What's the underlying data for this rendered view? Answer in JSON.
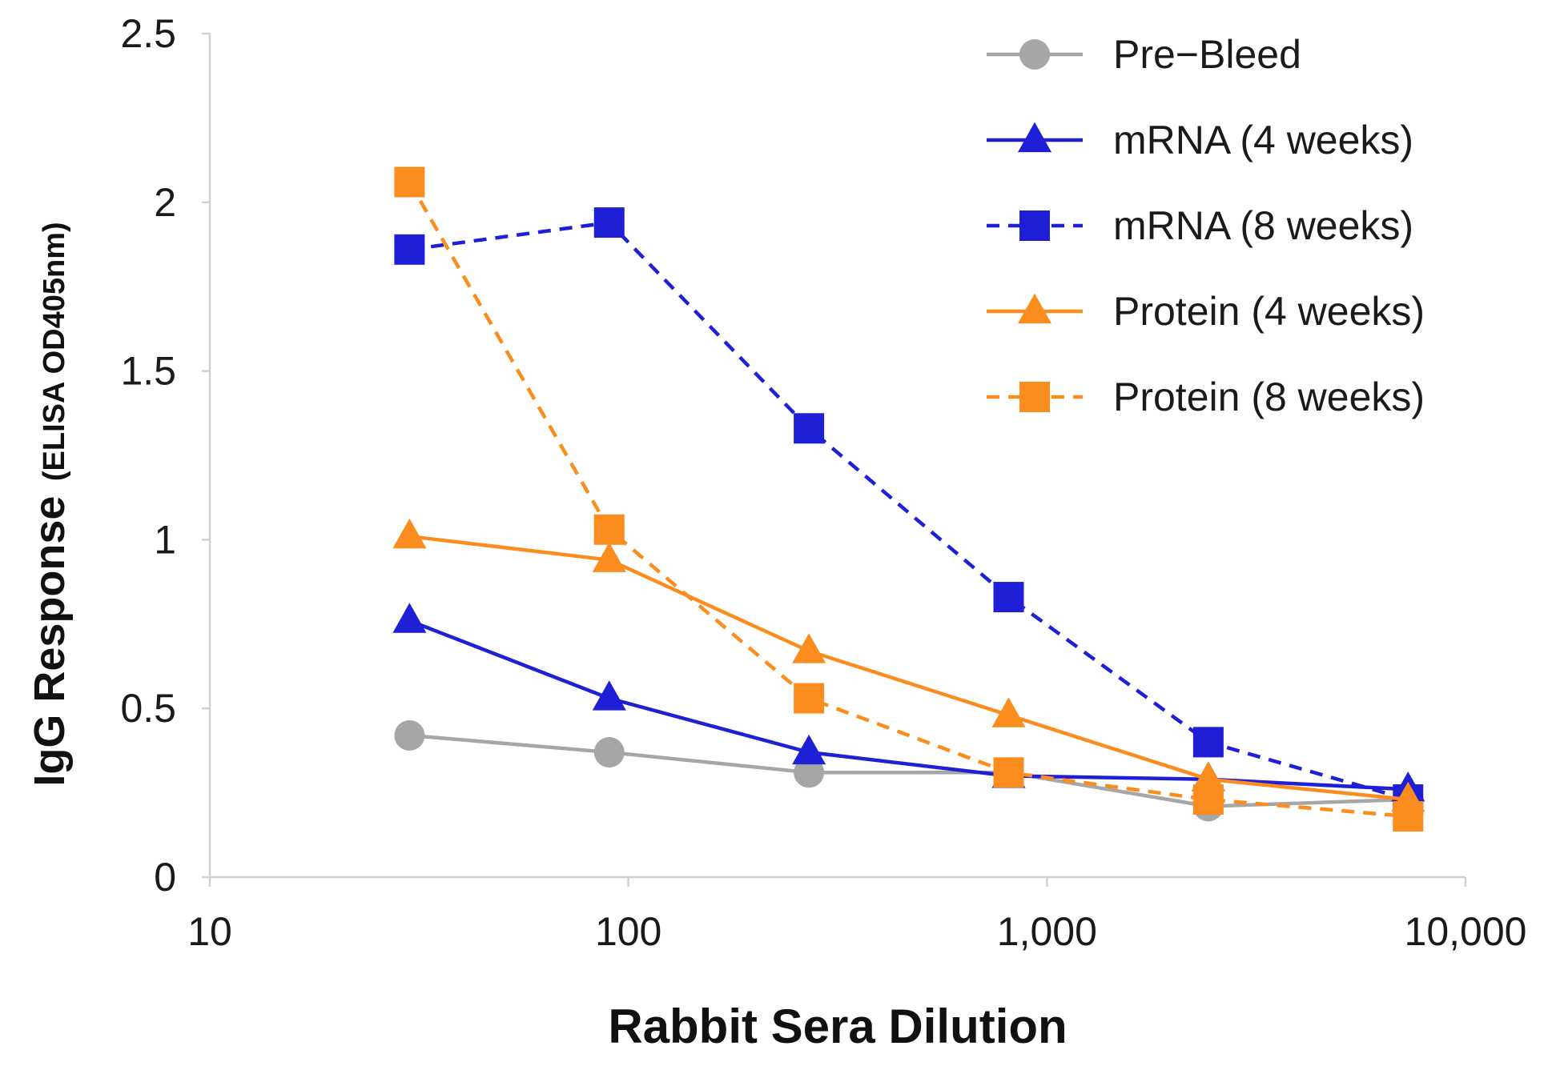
{
  "chart_data": {
    "type": "line",
    "title": "",
    "xlabel": "Rabbit Sera Dilution",
    "ylabel": "IgG Response",
    "ylabel_unit": "(ELISA OD405nm)",
    "x_scale": "log",
    "xlim": [
      10,
      10000
    ],
    "ylim": [
      0,
      2.5
    ],
    "x_ticks": [
      10,
      100,
      1000,
      10000
    ],
    "x_tick_labels": [
      "10",
      "100",
      "1,000",
      "10,000"
    ],
    "y_ticks": [
      0,
      0.5,
      1,
      1.5,
      2,
      2.5
    ],
    "y_tick_labels": [
      "0",
      "0.5",
      "1",
      "1.5",
      "2",
      "2.5"
    ],
    "grid": false,
    "legend_position": "top-right",
    "x": [
      30,
      90,
      270,
      810,
      2430,
      7290
    ],
    "series": [
      {
        "name": "Pre−Bleed",
        "values": [
          0.42,
          0.37,
          0.31,
          0.31,
          0.21,
          0.23
        ],
        "color": "#a6a6a6",
        "marker": "circle",
        "dash": "solid"
      },
      {
        "name": "mRNA (4 weeks)",
        "values": [
          0.76,
          0.53,
          0.37,
          0.3,
          0.29,
          0.26
        ],
        "color": "#1f1fd6",
        "marker": "triangle",
        "dash": "solid"
      },
      {
        "name": "mRNA (8 weeks)",
        "values": [
          1.86,
          1.94,
          1.33,
          0.83,
          0.4,
          0.23
        ],
        "color": "#1f1fd6",
        "marker": "square",
        "dash": "dashed"
      },
      {
        "name": "Protein (4 weeks)",
        "values": [
          1.01,
          0.94,
          0.67,
          0.48,
          0.29,
          0.23
        ],
        "color": "#fb8c1e",
        "marker": "triangle",
        "dash": "solid"
      },
      {
        "name": "Protein (8 weeks)",
        "values": [
          2.06,
          1.03,
          0.53,
          0.31,
          0.23,
          0.18
        ],
        "color": "#fb8c1e",
        "marker": "square",
        "dash": "dashed"
      }
    ]
  }
}
